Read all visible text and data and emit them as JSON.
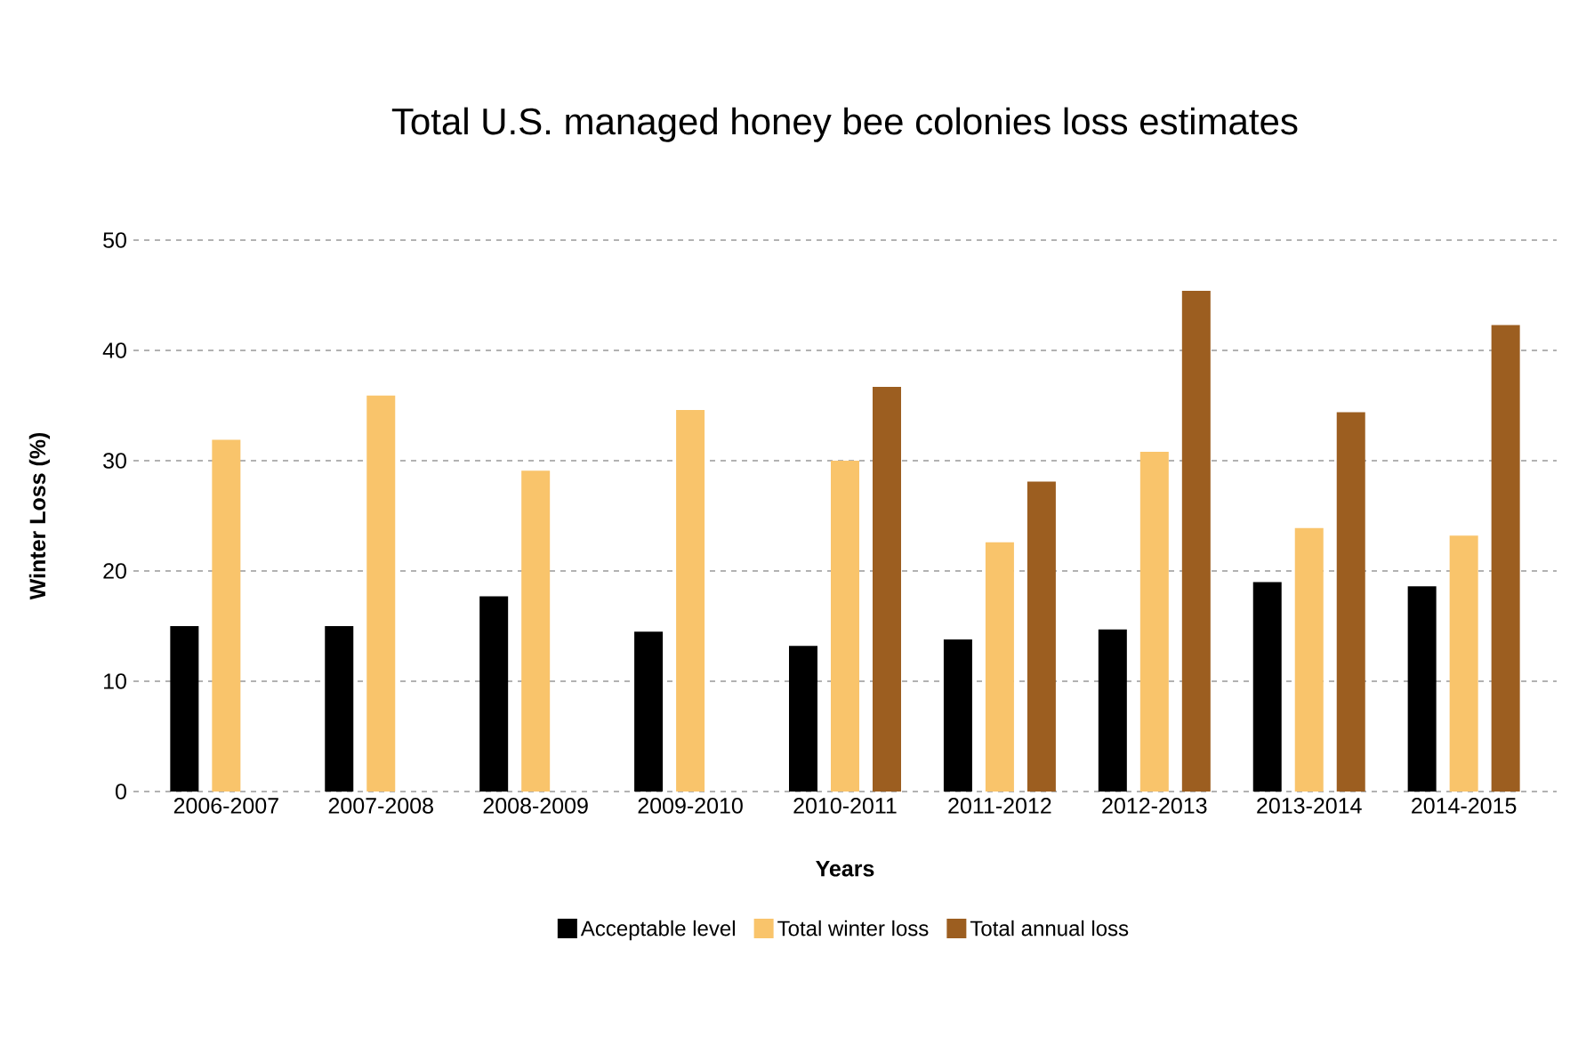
{
  "chart_data": {
    "type": "bar",
    "title": "Total U.S. managed honey bee colonies loss estimates",
    "xlabel": "Years",
    "ylabel": "Winter Loss (%)",
    "categories": [
      "2006-2007",
      "2007-2008",
      "2008-2009",
      "2009-2010",
      "2010-2011",
      "2011-2012",
      "2012-2013",
      "2013-2014",
      "2014-2015"
    ],
    "series": [
      {
        "name": "Acceptable level",
        "color": "#000000",
        "values": [
          15,
          15,
          17.7,
          14.5,
          13.2,
          13.8,
          14.7,
          19,
          18.6
        ]
      },
      {
        "name": "Total winter loss",
        "color": "#f9c46b",
        "values": [
          31.9,
          35.9,
          29.1,
          34.6,
          30,
          22.6,
          30.8,
          23.9,
          23.2
        ]
      },
      {
        "name": "Total annual loss",
        "color": "#9c5e20",
        "values": [
          0,
          0,
          0,
          0,
          36.7,
          28.1,
          45.4,
          34.4,
          42.3
        ]
      }
    ],
    "ylim": [
      0,
      50
    ],
    "yticks": [
      0,
      10,
      20,
      30,
      40,
      50
    ],
    "grid": "y",
    "legend": "bottom"
  }
}
